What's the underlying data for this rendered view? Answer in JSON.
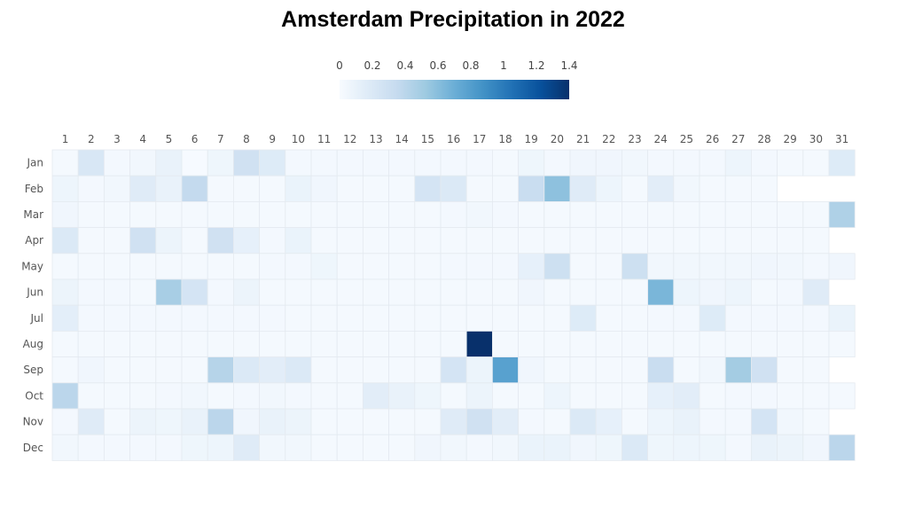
{
  "chart_data": {
    "type": "heatmap",
    "title": "Amsterdam Precipitation in 2022",
    "x_categories": [
      "1",
      "2",
      "3",
      "4",
      "5",
      "6",
      "7",
      "8",
      "9",
      "10",
      "11",
      "12",
      "13",
      "14",
      "15",
      "16",
      "17",
      "18",
      "19",
      "20",
      "21",
      "22",
      "23",
      "24",
      "25",
      "26",
      "27",
      "28",
      "29",
      "30",
      "31"
    ],
    "y_categories": [
      "Jan",
      "Feb",
      "Mar",
      "Apr",
      "May",
      "Jun",
      "Jul",
      "Aug",
      "Sep",
      "Oct",
      "Nov",
      "Dec"
    ],
    "values": [
      [
        0.02,
        0.22,
        0.03,
        0.04,
        0.1,
        0.01,
        0.06,
        0.28,
        0.18,
        0.03,
        0.03,
        0.03,
        0.03,
        0.03,
        0.03,
        0.03,
        0.03,
        0.02,
        0.06,
        0.03,
        0.05,
        0.05,
        0.04,
        0.03,
        0.03,
        0.03,
        0.07,
        0.03,
        0.02,
        0.02,
        0.18
      ],
      [
        0.07,
        0.03,
        0.04,
        0.17,
        0.1,
        0.36,
        0.02,
        0.02,
        0.02,
        0.09,
        0.05,
        0.02,
        0.02,
        0.02,
        0.25,
        0.2,
        0.02,
        0.02,
        0.33,
        0.58,
        0.17,
        0.07,
        0.02,
        0.15,
        0.04,
        0.02,
        0.02,
        0.02,
        null,
        null,
        null
      ],
      [
        0.05,
        0.02,
        0.02,
        0.02,
        0.02,
        0.02,
        0.02,
        0.02,
        0.02,
        0.02,
        0.02,
        0.02,
        0.02,
        0.02,
        0.02,
        0.03,
        0.04,
        0.03,
        0.02,
        0.02,
        0.02,
        0.02,
        0.02,
        0.02,
        0.02,
        0.02,
        0.02,
        0.02,
        0.02,
        0.02,
        0.45
      ],
      [
        0.2,
        0.02,
        0.02,
        0.28,
        0.08,
        0.02,
        0.28,
        0.12,
        0.03,
        0.09,
        0.02,
        0.02,
        0.02,
        0.02,
        0.02,
        0.02,
        0.02,
        0.02,
        0.02,
        0.02,
        0.02,
        0.02,
        0.02,
        0.02,
        0.02,
        0.02,
        0.02,
        0.02,
        0.02,
        0.02,
        null
      ],
      [
        0.02,
        0.02,
        0.02,
        0.02,
        0.02,
        0.02,
        0.02,
        0.02,
        0.03,
        0.03,
        0.06,
        0.02,
        0.02,
        0.02,
        0.02,
        0.03,
        0.03,
        0.03,
        0.12,
        0.3,
        0.02,
        0.02,
        0.3,
        0.04,
        0.04,
        0.04,
        0.04,
        0.05,
        0.04,
        0.03,
        0.05
      ],
      [
        0.08,
        0.03,
        0.03,
        0.02,
        0.48,
        0.25,
        0.03,
        0.08,
        0.02,
        0.02,
        0.02,
        0.02,
        0.02,
        0.02,
        0.02,
        0.02,
        0.02,
        0.02,
        0.05,
        0.02,
        0.02,
        0.02,
        0.02,
        0.65,
        0.07,
        0.05,
        0.07,
        0.02,
        0.03,
        0.17,
        null
      ],
      [
        0.14,
        0.03,
        0.03,
        0.03,
        0.03,
        0.03,
        0.03,
        0.03,
        0.03,
        0.02,
        0.02,
        0.02,
        0.02,
        0.02,
        0.02,
        0.02,
        0.02,
        0.02,
        0.02,
        0.02,
        0.18,
        0.02,
        0.02,
        0.03,
        0.03,
        0.18,
        0.03,
        0.03,
        0.03,
        0.03,
        0.09
      ],
      [
        0.02,
        0.02,
        0.02,
        0.02,
        0.02,
        0.02,
        0.02,
        0.02,
        0.02,
        0.02,
        0.02,
        0.02,
        0.02,
        0.02,
        0.02,
        0.02,
        1.4,
        0.02,
        0.02,
        0.02,
        0.02,
        0.02,
        0.02,
        0.02,
        0.02,
        0.02,
        0.02,
        0.02,
        0.02,
        0.02,
        0.02
      ],
      [
        0.02,
        0.05,
        0.02,
        0.02,
        0.02,
        0.02,
        0.42,
        0.2,
        0.15,
        0.2,
        0.02,
        0.02,
        0.02,
        0.02,
        0.02,
        0.25,
        0.08,
        0.78,
        0.05,
        0.02,
        0.02,
        0.02,
        0.02,
        0.33,
        0.02,
        0.04,
        0.5,
        0.28,
        0.02,
        0.02,
        null
      ],
      [
        0.4,
        0.02,
        0.02,
        0.02,
        0.03,
        0.04,
        0.02,
        0.03,
        0.04,
        0.03,
        0.02,
        0.02,
        0.15,
        0.1,
        0.06,
        0.02,
        0.08,
        0.02,
        0.02,
        0.07,
        0.02,
        0.02,
        0.02,
        0.12,
        0.15,
        0.02,
        0.03,
        0.03,
        0.02,
        0.02,
        0.02
      ],
      [
        0.03,
        0.17,
        0.02,
        0.08,
        0.06,
        0.1,
        0.4,
        0.05,
        0.1,
        0.08,
        0.02,
        0.02,
        0.02,
        0.02,
        0.02,
        0.17,
        0.28,
        0.15,
        0.03,
        0.02,
        0.2,
        0.12,
        0.02,
        0.07,
        0.1,
        0.03,
        0.03,
        0.25,
        0.04,
        0.02,
        null
      ],
      [
        0.04,
        0.03,
        0.03,
        0.03,
        0.03,
        0.06,
        0.07,
        0.17,
        0.04,
        0.04,
        0.02,
        0.02,
        0.02,
        0.02,
        0.05,
        0.04,
        0.03,
        0.04,
        0.09,
        0.09,
        0.05,
        0.06,
        0.2,
        0.06,
        0.07,
        0.06,
        0.03,
        0.1,
        0.08,
        0.05,
        0.4
      ]
    ],
    "colorscale": {
      "min": 0,
      "max": 1.4,
      "ticks": [
        "0",
        "0.2",
        "0.4",
        "0.6",
        "0.8",
        "1",
        "1.2",
        "1.4"
      ],
      "tick_values": [
        0,
        0.2,
        0.4,
        0.6,
        0.8,
        1,
        1.2,
        1.4
      ],
      "stops": [
        "#f7fbff",
        "#deebf7",
        "#c6dbef",
        "#9ecae1",
        "#6baed6",
        "#4292c6",
        "#2171b5",
        "#08519c",
        "#08306b"
      ]
    },
    "legend_placement": "top-center"
  }
}
